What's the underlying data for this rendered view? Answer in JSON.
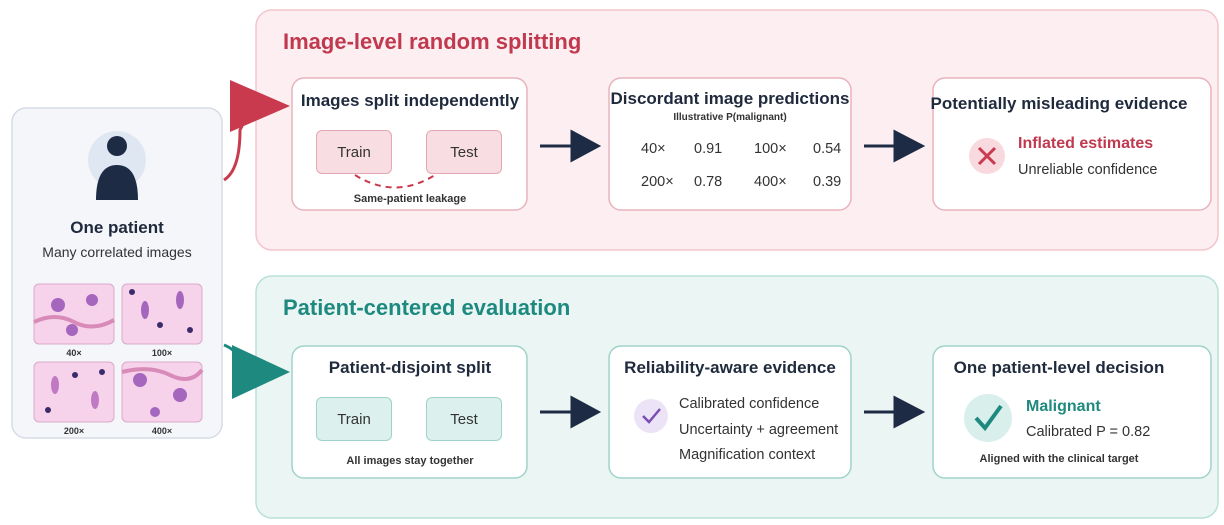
{
  "patient": {
    "title": "One patient",
    "subtitle": "Many correlated images",
    "magnifications": [
      "40×",
      "100×",
      "200×",
      "400×"
    ]
  },
  "top": {
    "title": "Image-level random splitting",
    "split": {
      "title": "Images split independently",
      "train": "Train",
      "test": "Test",
      "note": "Same-patient leakage"
    },
    "predictions": {
      "title": "Discordant image predictions",
      "subtitle": "Illustrative P(malignant)",
      "rows": [
        [
          "40×",
          0.91,
          "100×",
          0.54
        ],
        [
          "200×",
          0.78,
          "400×",
          0.39
        ]
      ]
    },
    "evidence": {
      "title": "Potentially misleading evidence",
      "headline": "Inflated estimates",
      "detail": "Unreliable confidence"
    }
  },
  "bottom": {
    "title": "Patient-centered evaluation",
    "split": {
      "title": "Patient-disjoint split",
      "train": "Train",
      "test": "Test",
      "note": "All images stay together"
    },
    "evidence": {
      "title": "Reliability-aware evidence",
      "items": [
        "Calibrated confidence",
        "Uncertainty + agreement",
        "Magnification context"
      ]
    },
    "decision": {
      "title": "One patient-level decision",
      "headline": "Malignant",
      "detail": "Calibrated P = 0.82",
      "note": "Aligned with the clinical target"
    }
  }
}
